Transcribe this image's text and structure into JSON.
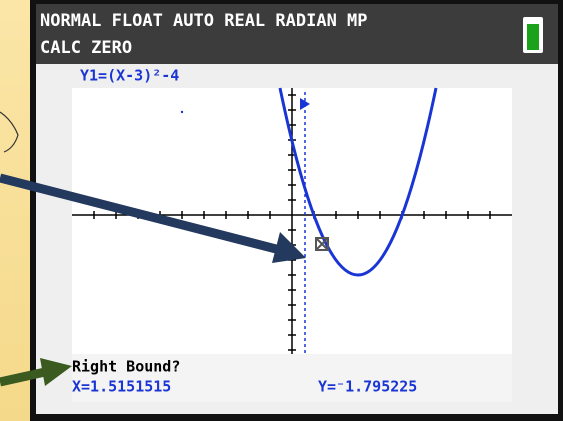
{
  "status": {
    "modes": "NORMAL FLOAT AUTO REAL RADIAN MP",
    "menu": "CALC ZERO"
  },
  "graph": {
    "function": "Y1=(X-3)²-4"
  },
  "prompt": {
    "text": "Right Bound?",
    "x": "X=1.5151515",
    "y": "Y=⁻1.795225"
  }
}
